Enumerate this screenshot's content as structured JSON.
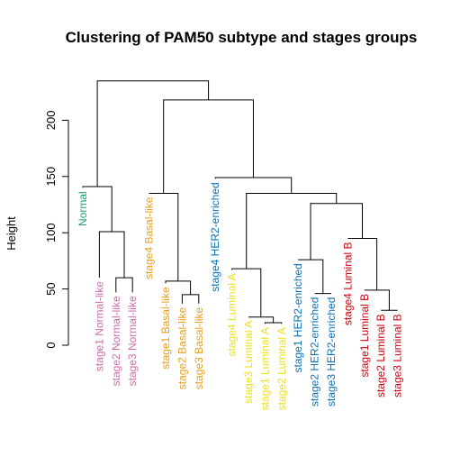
{
  "chart_data": {
    "type": "dendrogram",
    "title": "Clustering of PAM50 subtype and stages groups",
    "ylabel": "Height",
    "xlabel": "",
    "ylim": [
      0,
      235
    ],
    "y_ticks": [
      0,
      50,
      100,
      150,
      200
    ],
    "group_colors": {
      "Normal": "#1b9e77",
      "Normal-like": "#cc6fa8",
      "Basal-like": "#e6a01e",
      "HER2-enriched": "#0a72b2",
      "Luminal A": "#eee020",
      "Luminal B": "#d0000f"
    },
    "leaves": [
      {
        "label": "Normal",
        "group": "Normal"
      },
      {
        "label": "stage1 Normal-like",
        "group": "Normal-like"
      },
      {
        "label": "stage2 Normal-like",
        "group": "Normal-like"
      },
      {
        "label": "stage3 Normal-like",
        "group": "Normal-like"
      },
      {
        "label": "stage4 Basal-like",
        "group": "Basal-like"
      },
      {
        "label": "stage1 Basal-like",
        "group": "Basal-like"
      },
      {
        "label": "stage2 Basal-like",
        "group": "Basal-like"
      },
      {
        "label": "stage3 Basal-like",
        "group": "Basal-like"
      },
      {
        "label": "stage4 HER2-enriched",
        "group": "HER2-enriched"
      },
      {
        "label": "stage4 Luminal A",
        "group": "Luminal A"
      },
      {
        "label": "stage3 Luminal A",
        "group": "Luminal A"
      },
      {
        "label": "stage1 Luminal A",
        "group": "Luminal A"
      },
      {
        "label": "stage2 Luminal A",
        "group": "Luminal A"
      },
      {
        "label": "stage1 HER2-enriched",
        "group": "HER2-enriched"
      },
      {
        "label": "stage2 HER2-enriched",
        "group": "HER2-enriched"
      },
      {
        "label": "stage3 HER2-enriched",
        "group": "HER2-enriched"
      },
      {
        "label": "stage4 Luminal B",
        "group": "Luminal B"
      },
      {
        "label": "stage1 Luminal B",
        "group": "Luminal B"
      },
      {
        "label": "stage2 Luminal B",
        "group": "Luminal B"
      },
      {
        "label": "stage3 Luminal B",
        "group": "Luminal B"
      }
    ],
    "leaf_heights": [
      140,
      60,
      47,
      47,
      135,
      55,
      37,
      37,
      148,
      67,
      25,
      19,
      19,
      76,
      46,
      46,
      95,
      49,
      31,
      31
    ],
    "merges": [
      {
        "a": "stage2 Normal-like",
        "b": "stage3 Normal-like",
        "height": 60
      },
      {
        "a": "stage1 Normal-like",
        "b": "cluster:1",
        "height": 101
      },
      {
        "a": "Normal",
        "b": "cluster:2",
        "height": 141
      },
      {
        "a": "stage2 Basal-like",
        "b": "stage3 Basal-like",
        "height": 45
      },
      {
        "a": "stage1 Basal-like",
        "b": "cluster:4",
        "height": 57
      },
      {
        "a": "stage4 Basal-like",
        "b": "cluster:5",
        "height": 135
      },
      {
        "a": "stage1 Luminal A",
        "b": "stage2 Luminal A",
        "height": 20
      },
      {
        "a": "stage3 Luminal A",
        "b": "cluster:7",
        "height": 25
      },
      {
        "a": "stage4 Luminal A",
        "b": "cluster:8",
        "height": 68
      },
      {
        "a": "stage2 HER2-enriched",
        "b": "stage3 HER2-enriched",
        "height": 46
      },
      {
        "a": "stage1 HER2-enriched",
        "b": "cluster:10",
        "height": 76
      },
      {
        "a": "stage2 Luminal B",
        "b": "stage3 Luminal B",
        "height": 31
      },
      {
        "a": "stage1 Luminal B",
        "b": "cluster:12",
        "height": 49
      },
      {
        "a": "stage4 Luminal B",
        "b": "cluster:13",
        "height": 95
      },
      {
        "a": "cluster:11",
        "b": "cluster:14",
        "height": 126
      },
      {
        "a": "cluster:9",
        "b": "cluster:15",
        "height": 135
      },
      {
        "a": "stage4 HER2-enriched",
        "b": "cluster:16",
        "height": 149
      },
      {
        "a": "cluster:6",
        "b": "cluster:17",
        "height": 218
      },
      {
        "a": "cluster:3",
        "b": "cluster:18",
        "height": 235
      }
    ]
  }
}
